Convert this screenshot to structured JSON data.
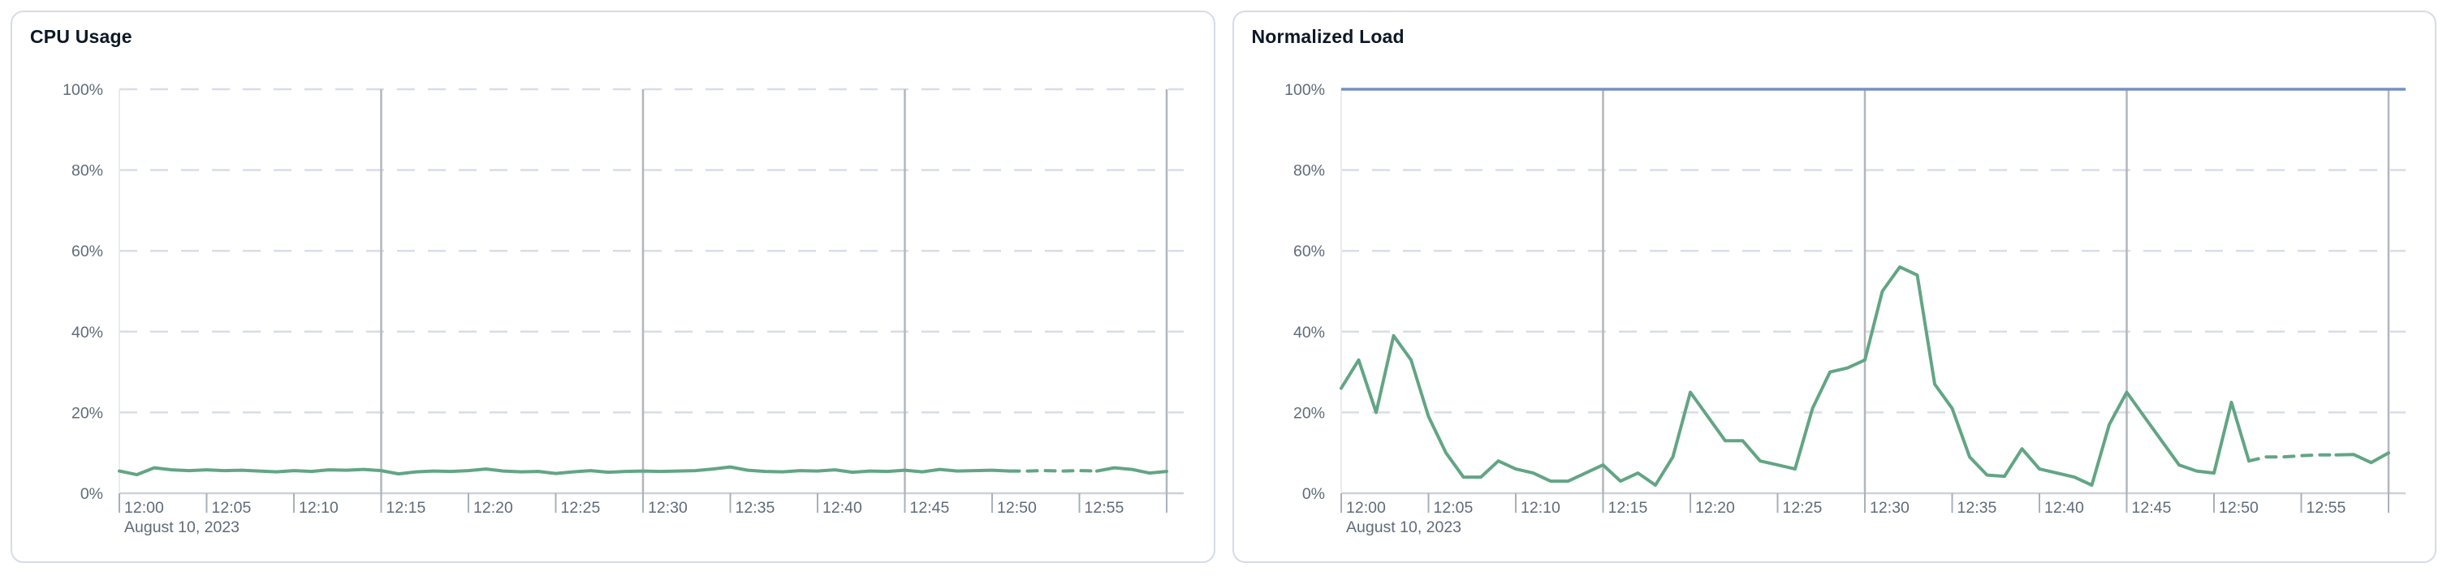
{
  "colors": {
    "page_background": "#ffffff",
    "card_background": "#ffffff",
    "card_border": "#d6dbe8",
    "title_text": "#0d1726",
    "axis_label_text": "#5f6b7a",
    "gridline_dashed": "#d8dde7",
    "gridline_major_vertical": "#b2b6bd",
    "axis_baseline": "#cdd1d8",
    "axis_tick": "#aab0b8",
    "plot_left_edge": "#e9ebf0",
    "series_green": "#62a585",
    "series_blue": "#7591c2"
  },
  "chart_data": [
    {
      "type": "line",
      "title": "CPU Usage",
      "x_axis": {
        "date_label": "August 10, 2023",
        "tick_interval_minutes": 5,
        "tick_labels": [
          "12:00",
          "12:05",
          "12:10",
          "12:15",
          "12:20",
          "12:25",
          "12:30",
          "12:35",
          "12:40",
          "12:45",
          "12:50",
          "12:55"
        ],
        "domain_start": "12:00",
        "domain_end_unlabeled": "13:00",
        "major_gridlines_at": [
          "12:15",
          "12:30",
          "12:45",
          "13:00"
        ]
      },
      "y_axis": {
        "min": 0,
        "max": 100,
        "unit": "%",
        "tick_labels": [
          "0%",
          "20%",
          "40%",
          "60%",
          "80%",
          "100%"
        ],
        "grid": "dashed horizontal lines every 20%"
      },
      "series": [
        {
          "name": "cpu-usage",
          "color": "#62a585",
          "sample_interval": "1 minute from 12:00 to 13:00",
          "values_percent": [
            5.5,
            4.6,
            6.3,
            5.8,
            5.6,
            5.8,
            5.6,
            5.7,
            5.5,
            5.3,
            5.6,
            5.4,
            5.8,
            5.7,
            5.9,
            5.6,
            4.8,
            5.3,
            5.5,
            5.4,
            5.6,
            6.0,
            5.5,
            5.3,
            5.4,
            4.9,
            5.3,
            5.6,
            5.2,
            5.4,
            5.5,
            5.4,
            5.5,
            5.6,
            6.0,
            6.5,
            5.7,
            5.4,
            5.3,
            5.6,
            5.5,
            5.8,
            5.2,
            5.5,
            5.4,
            5.7,
            5.3,
            5.9,
            5.5,
            5.6,
            5.7,
            5.5,
            5.5,
            5.6,
            5.5,
            5.6,
            5.5,
            6.3,
            5.9,
            5.0,
            5.4
          ],
          "dashed_segment_minutes": [
            51,
            56
          ]
        }
      ]
    },
    {
      "type": "line",
      "title": "Normalized Load",
      "x_axis": {
        "date_label": "August 10, 2023",
        "tick_interval_minutes": 5,
        "tick_labels": [
          "12:00",
          "12:05",
          "12:10",
          "12:15",
          "12:20",
          "12:25",
          "12:30",
          "12:35",
          "12:40",
          "12:45",
          "12:50",
          "12:55"
        ],
        "domain_start": "12:00",
        "domain_end_unlabeled": "13:00",
        "major_gridlines_at": [
          "12:15",
          "12:30",
          "12:45",
          "13:00"
        ]
      },
      "y_axis": {
        "min": 0,
        "max": 100,
        "unit": "%",
        "tick_labels": [
          "0%",
          "20%",
          "40%",
          "60%",
          "80%",
          "100%"
        ],
        "grid": "dashed horizontal lines every 20%"
      },
      "series": [
        {
          "name": "normalized-load",
          "color": "#62a585",
          "sample_interval": "1 minute from 12:00 to 13:00",
          "values_percent": [
            26,
            33,
            20,
            39,
            33,
            19,
            10,
            4,
            4,
            8,
            6,
            5,
            3,
            3,
            5,
            7,
            3,
            5,
            2,
            9,
            25,
            19,
            13,
            13,
            8,
            7,
            6,
            21,
            30,
            31,
            33,
            50,
            56,
            54,
            27,
            21,
            9,
            4.5,
            4.2,
            11,
            6,
            5,
            4,
            2,
            17,
            25,
            19,
            13,
            7,
            5.5,
            5,
            22.5,
            8,
            9,
            9,
            9.3,
            9.5,
            9.5,
            9.6,
            7.6,
            10
          ],
          "dashed_segment_minutes": [
            52,
            57
          ]
        },
        {
          "name": "limit",
          "color": "#7591c2",
          "constant_value_percent": 100
        }
      ]
    }
  ]
}
